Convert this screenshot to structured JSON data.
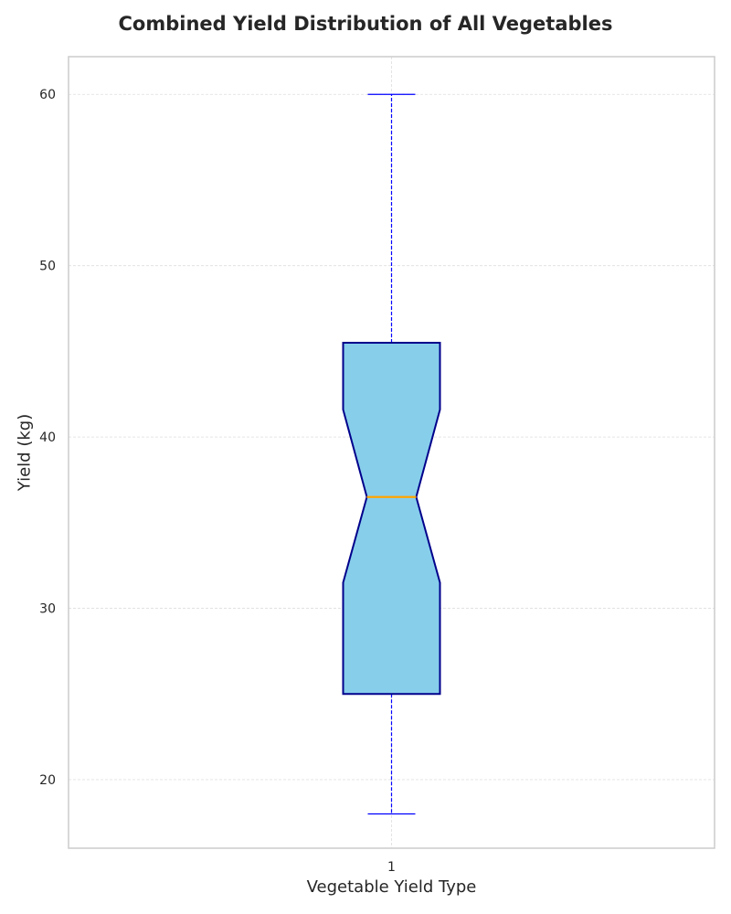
{
  "chart_data": {
    "type": "box",
    "title": "Combined Yield Distribution of All Vegetables",
    "xlabel": "Vegetable Yield Type",
    "ylabel": "Yield (kg)",
    "ylim": [
      16,
      62.2
    ],
    "yticks": [
      20,
      30,
      40,
      50,
      60
    ],
    "categories": [
      "1"
    ],
    "boxes": [
      {
        "label": "1",
        "whisker_low": 18,
        "q1": 25,
        "notch_low": 31.5,
        "median": 36.5,
        "notch_high": 41.6,
        "q3": 45.5,
        "whisker_high": 60
      }
    ],
    "grid": true,
    "notched": true,
    "colors": {
      "box_fill": "#87CEEB",
      "box_edge": "#00008B",
      "median": "#FFA500",
      "whisker": "#0000FF",
      "grid": "#dddddd",
      "frame": "#cccccc"
    }
  }
}
